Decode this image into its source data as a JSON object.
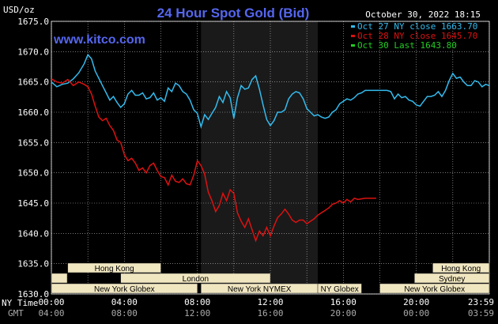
{
  "chart_data": {
    "type": "line",
    "title": "24 Hour Spot Gold (Bid)",
    "timestamp": "October 30, 2022 18:15",
    "watermark": "www.kitco.com",
    "y_unit_label": "USD/oz",
    "ylim": [
      1630,
      1675
    ],
    "y_ticks": [
      "1675.0",
      "1670.0",
      "1665.0",
      "1660.0",
      "1655.0",
      "1650.0",
      "1645.0",
      "1640.0",
      "1635.0",
      "1630.0"
    ],
    "xlim": [
      0,
      24
    ],
    "x_axis_row_labels": {
      "ny_time": "NY Time",
      "gmt": "GMT"
    },
    "x_ticks_ny": [
      "00:00",
      "04:00",
      "08:00",
      "12:00",
      "16:00",
      "20:00",
      "23:59"
    ],
    "x_ticks_gmt": [
      "04:00",
      "08:00",
      "12:00",
      "16:00",
      "20:00",
      "00:00",
      "03:59"
    ],
    "grid": true,
    "legend_position": "top-right",
    "colors": {
      "oct27": "#33bbee",
      "oct28": "#dd1111",
      "oct30": "#22cc22",
      "title": "#5566ee",
      "watermark": "#5566ee",
      "band": "#1a1a1a",
      "market_bg": "#f0e6c0"
    },
    "series": [
      {
        "name": "Oct 27 NY close 1663.70",
        "key": "oct27",
        "x": [
          0,
          0.3,
          0.6,
          0.9,
          1.2,
          1.5,
          1.8,
          2.0,
          2.2,
          2.4,
          2.6,
          2.8,
          3.0,
          3.2,
          3.4,
          3.6,
          3.8,
          4.0,
          4.2,
          4.4,
          4.6,
          4.8,
          5.0,
          5.2,
          5.4,
          5.6,
          5.8,
          6.0,
          6.2,
          6.4,
          6.6,
          6.8,
          7.0,
          7.2,
          7.4,
          7.6,
          7.8,
          8.0,
          8.2,
          8.4,
          8.6,
          8.8,
          9.0,
          9.2,
          9.4,
          9.6,
          9.8,
          10.0,
          10.2,
          10.4,
          10.6,
          10.8,
          11.0,
          11.2,
          11.4,
          11.6,
          11.8,
          12.0,
          12.2,
          12.4,
          12.6,
          12.8,
          13.0,
          13.2,
          13.4,
          13.6,
          13.8,
          14.0,
          14.2,
          14.4,
          14.6,
          14.8,
          15.0,
          15.2,
          15.4,
          15.6,
          15.8,
          16.0,
          16.2,
          16.4,
          16.6,
          16.8,
          17.0,
          17.2,
          17.4,
          17.6,
          17.8,
          18.0,
          18.2,
          18.4,
          18.6,
          18.8,
          19.0,
          19.2,
          19.4,
          19.6,
          19.8,
          20.0,
          20.2,
          20.4,
          20.6,
          20.8,
          21.0,
          21.2,
          21.4,
          21.6,
          21.8,
          22.0,
          22.2,
          22.4,
          22.6,
          22.8,
          23.0,
          23.2,
          23.4,
          23.6,
          23.8,
          23.99
        ],
        "y": [
          1665.0,
          1664.2,
          1664.6,
          1664.8,
          1665.5,
          1666.5,
          1668.0,
          1669.5,
          1668.8,
          1666.8,
          1665.6,
          1664.4,
          1663.2,
          1662.0,
          1662.6,
          1661.6,
          1660.8,
          1661.4,
          1663.0,
          1663.6,
          1662.8,
          1662.8,
          1663.2,
          1662.2,
          1662.4,
          1663.2,
          1662.0,
          1662.4,
          1661.8,
          1664.0,
          1663.4,
          1664.8,
          1664.4,
          1663.4,
          1663.0,
          1662.0,
          1660.4,
          1659.8,
          1657.6,
          1659.6,
          1658.8,
          1659.8,
          1660.8,
          1662.6,
          1661.6,
          1663.4,
          1662.4,
          1659.0,
          1662.4,
          1664.4,
          1663.8,
          1664.0,
          1665.4,
          1666.0,
          1663.8,
          1661.2,
          1658.8,
          1657.8,
          1658.6,
          1660.0,
          1660.0,
          1660.4,
          1662.2,
          1663.0,
          1663.4,
          1663.2,
          1662.2,
          1660.6,
          1660.0,
          1659.4,
          1659.6,
          1659.2,
          1659.0,
          1659.2,
          1660.0,
          1660.4,
          1661.4,
          1661.8,
          1662.2,
          1662.0,
          1662.4,
          1663.0,
          1663.2,
          1663.6,
          1663.6,
          1663.6,
          1663.6,
          1663.6,
          1663.6,
          1663.6,
          1663.4,
          1662.2,
          1663.0,
          1662.4,
          1662.6,
          1662.0,
          1661.8,
          1661.2,
          1661.0,
          1661.8,
          1662.6,
          1662.6,
          1662.8,
          1663.4,
          1662.6,
          1663.6,
          1665.2,
          1666.4,
          1665.6,
          1665.8,
          1665.0,
          1664.4,
          1664.4,
          1665.2,
          1665.0,
          1664.2,
          1664.6,
          1664.4
        ]
      },
      {
        "name": "Oct 28 NY close 1645.70",
        "key": "oct28",
        "x": [
          0,
          0.3,
          0.6,
          0.9,
          1.2,
          1.5,
          1.8,
          2.0,
          2.2,
          2.4,
          2.6,
          2.8,
          3.0,
          3.2,
          3.4,
          3.6,
          3.8,
          4.0,
          4.2,
          4.4,
          4.6,
          4.8,
          5.0,
          5.2,
          5.4,
          5.6,
          5.8,
          6.0,
          6.2,
          6.4,
          6.6,
          6.8,
          7.0,
          7.2,
          7.4,
          7.6,
          7.8,
          8.0,
          8.2,
          8.4,
          8.6,
          8.8,
          9.0,
          9.2,
          9.4,
          9.6,
          9.8,
          10.0,
          10.2,
          10.4,
          10.6,
          10.8,
          11.0,
          11.2,
          11.4,
          11.6,
          11.8,
          12.0,
          12.2,
          12.4,
          12.6,
          12.8,
          13.0,
          13.2,
          13.4,
          13.6,
          13.8,
          14.0,
          14.2,
          14.4,
          14.6,
          14.8,
          15.0,
          15.2,
          15.4,
          15.6,
          15.8,
          16.0,
          16.2,
          16.4,
          16.6,
          16.8,
          17.0,
          17.2,
          17.4,
          17.6,
          17.8
        ],
        "y": [
          1665.5,
          1665.0,
          1664.8,
          1665.4,
          1664.4,
          1665.0,
          1664.6,
          1664.2,
          1663.0,
          1661.0,
          1659.2,
          1658.6,
          1659.0,
          1657.8,
          1657.0,
          1655.4,
          1655.0,
          1653.0,
          1652.0,
          1652.4,
          1651.6,
          1650.4,
          1650.8,
          1650.0,
          1651.2,
          1651.6,
          1650.4,
          1649.4,
          1649.2,
          1648.0,
          1649.6,
          1648.6,
          1648.4,
          1649.0,
          1648.2,
          1648.0,
          1649.6,
          1652.0,
          1651.2,
          1649.8,
          1646.8,
          1645.4,
          1643.6,
          1644.6,
          1646.6,
          1645.4,
          1647.2,
          1646.6,
          1643.4,
          1642.0,
          1641.0,
          1642.4,
          1640.6,
          1638.8,
          1640.4,
          1639.6,
          1641.0,
          1639.6,
          1641.2,
          1642.6,
          1643.2,
          1644.0,
          1643.2,
          1642.2,
          1641.8,
          1642.2,
          1642.2,
          1641.6,
          1642.0,
          1642.4,
          1643.0,
          1643.4,
          1643.8,
          1644.2,
          1644.8,
          1645.0,
          1645.4,
          1645.0,
          1645.6,
          1645.2,
          1645.8,
          1645.6,
          1645.7,
          1645.8,
          1645.8,
          1645.8,
          1645.8
        ]
      },
      {
        "name": "Oct 30 Last 1643.80",
        "key": "oct30",
        "x": [],
        "y": []
      }
    ],
    "shaded_band_hours": [
      8.2,
      14.6
    ],
    "market_bars": [
      {
        "name": "Hong Kong",
        "row": 0,
        "start": 0.9,
        "end": 6.0
      },
      {
        "name": "London",
        "row": 1,
        "start": 3.8,
        "end": 12.0
      },
      {
        "name": "New York Globex",
        "row": 2,
        "start": 0.0,
        "end": 8.0
      },
      {
        "name": "New York NYMEX",
        "row": 2,
        "start": 8.2,
        "end": 14.6
      },
      {
        "name": "NY Globex",
        "row": 2,
        "start": 14.6,
        "end": 17.0
      },
      {
        "name": "Hong Kong",
        "row": 0,
        "start": 20.9,
        "end": 24.0
      },
      {
        "name": "Sydney",
        "row": 1,
        "start": 19.9,
        "end": 24.0
      },
      {
        "name": "New York Globex",
        "row": 2,
        "start": 18.0,
        "end": 24.0
      }
    ],
    "left_stub_bar_rows": [
      1
    ]
  }
}
